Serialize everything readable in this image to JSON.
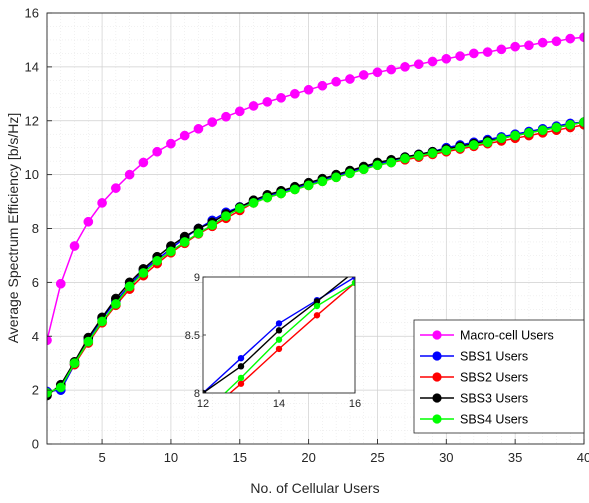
{
  "chart_data": {
    "type": "line",
    "title": "",
    "xlabel": "No. of Cellular Users",
    "ylabel": "Average Spectrum Efficiency [b/s/Hz]",
    "xlim": [
      1,
      40
    ],
    "ylim": [
      0,
      16
    ],
    "xticks": [
      5,
      10,
      15,
      20,
      25,
      30,
      35,
      40
    ],
    "yticks": [
      0,
      2,
      4,
      6,
      8,
      10,
      12,
      14,
      16
    ],
    "grid": true,
    "minor_grid": true,
    "legend_position": "bottom-right",
    "x": [
      1,
      2,
      3,
      4,
      5,
      6,
      7,
      8,
      9,
      10,
      11,
      12,
      13,
      14,
      15,
      16,
      17,
      18,
      19,
      20,
      21,
      22,
      23,
      24,
      25,
      26,
      27,
      28,
      29,
      30,
      31,
      32,
      33,
      34,
      35,
      36,
      37,
      38,
      39,
      40
    ],
    "series": [
      {
        "name": "Macro-cell Users",
        "color": "#ff00ff",
        "values": [
          3.85,
          5.95,
          7.35,
          8.25,
          8.95,
          9.5,
          10.0,
          10.45,
          10.85,
          11.15,
          11.45,
          11.7,
          11.95,
          12.15,
          12.35,
          12.55,
          12.7,
          12.85,
          13.0,
          13.15,
          13.3,
          13.45,
          13.55,
          13.7,
          13.8,
          13.9,
          14.0,
          14.1,
          14.2,
          14.3,
          14.4,
          14.5,
          14.55,
          14.65,
          14.75,
          14.8,
          14.9,
          14.95,
          15.05,
          15.1
        ]
      },
      {
        "name": "SBS1 Users",
        "color": "#0000ff",
        "values": [
          1.95,
          2.0,
          2.95,
          3.85,
          4.65,
          5.3,
          5.9,
          6.45,
          6.85,
          7.25,
          7.65,
          8.0,
          8.3,
          8.6,
          8.8,
          9.0,
          9.2,
          9.35,
          9.5,
          9.65,
          9.8,
          9.95,
          10.1,
          10.25,
          10.4,
          10.5,
          10.65,
          10.75,
          10.85,
          11.0,
          11.1,
          11.2,
          11.3,
          11.4,
          11.5,
          11.6,
          11.7,
          11.8,
          11.9,
          11.95
        ]
      },
      {
        "name": "SBS2 Users",
        "color": "#ff0000",
        "values": [
          1.85,
          2.15,
          2.95,
          3.75,
          4.5,
          5.15,
          5.75,
          6.25,
          6.7,
          7.1,
          7.45,
          7.8,
          8.08,
          8.38,
          8.67,
          8.95,
          9.15,
          9.3,
          9.45,
          9.6,
          9.75,
          9.9,
          10.05,
          10.2,
          10.35,
          10.45,
          10.55,
          10.65,
          10.75,
          10.85,
          10.95,
          11.05,
          11.15,
          11.25,
          11.35,
          11.45,
          11.55,
          11.65,
          11.75,
          11.85
        ]
      },
      {
        "name": "SBS3 Users",
        "color": "#000000",
        "values": [
          1.8,
          2.2,
          3.05,
          3.95,
          4.7,
          5.4,
          6.0,
          6.5,
          6.95,
          7.35,
          7.7,
          8.0,
          8.23,
          8.54,
          8.79,
          9.05,
          9.25,
          9.4,
          9.55,
          9.7,
          9.85,
          10.0,
          10.15,
          10.3,
          10.45,
          10.55,
          10.65,
          10.75,
          10.85,
          10.95,
          11.05,
          11.15,
          11.25,
          11.35,
          11.45,
          11.55,
          11.65,
          11.75,
          11.85,
          11.95
        ]
      },
      {
        "name": "SBS4 Users",
        "color": "#00ff00",
        "values": [
          1.9,
          2.1,
          3.0,
          3.8,
          4.55,
          5.2,
          5.85,
          6.35,
          6.8,
          7.15,
          7.5,
          7.82,
          8.13,
          8.46,
          8.75,
          8.95,
          9.15,
          9.3,
          9.45,
          9.6,
          9.75,
          9.9,
          10.05,
          10.2,
          10.35,
          10.45,
          10.6,
          10.7,
          10.8,
          10.9,
          11.0,
          11.1,
          11.2,
          11.35,
          11.45,
          11.55,
          11.65,
          11.75,
          11.85,
          11.95
        ]
      }
    ],
    "inset": {
      "xlim": [
        12,
        16
      ],
      "ylim": [
        8,
        9
      ],
      "xticks": [
        12,
        14,
        16
      ],
      "yticks": [
        8,
        8.5,
        9
      ],
      "ytick_labels": [
        "8",
        "8.5",
        "9"
      ]
    }
  }
}
